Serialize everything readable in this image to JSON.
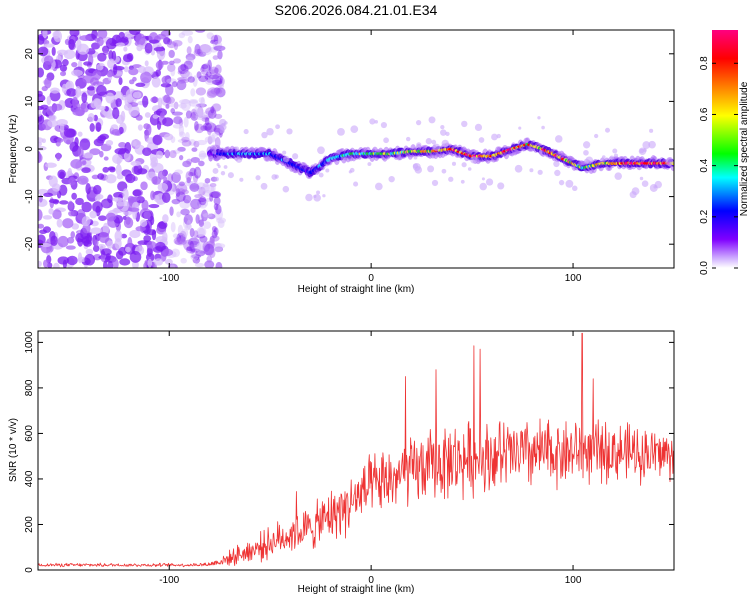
{
  "title": "S206.2026.084.21.01.E34",
  "chart_data": [
    {
      "type": "heatmap",
      "name": "doppler-spectrogram",
      "xlabel": "Height of straight line (km)",
      "ylabel": "Frequency (Hz)",
      "xlim": [
        -165,
        150
      ],
      "ylim": [
        -25,
        25
      ],
      "xticks": [
        -100,
        0,
        100
      ],
      "yticks": [
        -20,
        -10,
        0,
        10,
        20
      ],
      "colorbar": {
        "label": "Normalized spectral amplitude",
        "range": [
          0.0,
          0.93
        ],
        "ticks": [
          0.0,
          0.2,
          0.4,
          0.6,
          0.8
        ],
        "colors": [
          "#ffffff",
          "#8000ff",
          "#0000ff",
          "#00ffff",
          "#00ff00",
          "#ffff00",
          "#ff8000",
          "#ff0000",
          "#ff0080"
        ]
      },
      "noise_region": {
        "x_range": [
          -165,
          -80
        ],
        "amplitude_range": [
          0.0,
          0.15
        ]
      },
      "signal_track": {
        "x": [
          -80,
          -70,
          -60,
          -50,
          -40,
          -30,
          -20,
          -10,
          0,
          10,
          20,
          30,
          40,
          50,
          60,
          70,
          78,
          85,
          95,
          105,
          115,
          125,
          135,
          145
        ],
        "frequency": [
          -1,
          -1,
          -1,
          -1,
          -3,
          -5,
          -2,
          -1,
          -1,
          -1,
          -0.5,
          -0.5,
          0,
          -1.5,
          -1.5,
          0,
          1,
          0,
          -2,
          -4,
          -3,
          -3,
          -3,
          -3
        ],
        "peak_amplitude": [
          0.08,
          0.3,
          0.3,
          0.3,
          0.25,
          0.2,
          0.35,
          0.45,
          0.5,
          0.55,
          0.6,
          0.75,
          0.8,
          0.88,
          0.85,
          0.88,
          0.7,
          0.8,
          0.88,
          0.5,
          0.75,
          0.85,
          0.88,
          0.85
        ]
      }
    },
    {
      "type": "line",
      "name": "snr-trace",
      "xlabel": "Height of straight line (km)",
      "ylabel": "SNR (10 * v/v)",
      "xlim": [
        -165,
        150
      ],
      "ylim": [
        0,
        1050
      ],
      "xticks": [
        -100,
        0,
        100
      ],
      "yticks": [
        0,
        200,
        400,
        600,
        800,
        1000
      ],
      "series": [
        {
          "name": "SNR",
          "color": "#ee3333",
          "x": [
            -165,
            -150,
            -135,
            -120,
            -105,
            -90,
            -80,
            -72,
            -65,
            -58,
            -50,
            -42,
            -35,
            -28,
            -20,
            -12,
            -5,
            0,
            10,
            20,
            30,
            40,
            50,
            60,
            70,
            80,
            90,
            100,
            110,
            120,
            130,
            140,
            150
          ],
          "mean": [
            22,
            22,
            22,
            22,
            22,
            22,
            25,
            45,
            70,
            90,
            120,
            150,
            170,
            190,
            240,
            280,
            330,
            360,
            400,
            430,
            460,
            480,
            490,
            500,
            505,
            510,
            515,
            520,
            520,
            520,
            515,
            510,
            505
          ],
          "spread": [
            12,
            12,
            12,
            12,
            12,
            12,
            15,
            45,
            70,
            90,
            110,
            130,
            140,
            160,
            180,
            200,
            210,
            220,
            230,
            240,
            250,
            260,
            260,
            260,
            250,
            250,
            240,
            230,
            220,
            210,
            200,
            190,
            180
          ],
          "peaks": [
            {
              "x": 104.5,
              "y": 1040
            },
            {
              "x": 51,
              "y": 985
            },
            {
              "x": 54,
              "y": 970
            },
            {
              "x": 32,
              "y": 880
            },
            {
              "x": 17,
              "y": 850
            },
            {
              "x": 110,
              "y": 840
            },
            {
              "x": -37,
              "y": 345
            }
          ]
        }
      ]
    }
  ]
}
